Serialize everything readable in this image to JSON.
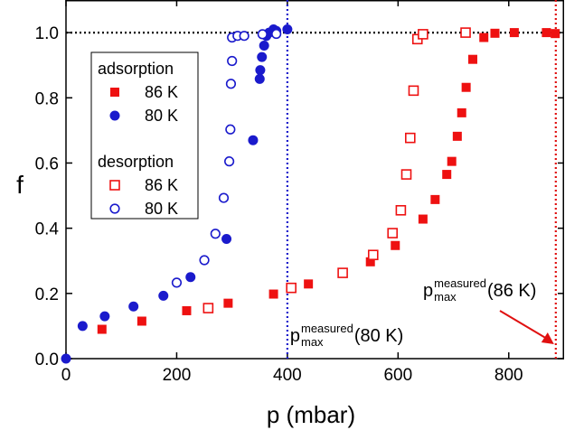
{
  "chart_data": {
    "type": "scatter",
    "x_label": "p (mbar)",
    "y_label": "f",
    "xlim": [
      0,
      900
    ],
    "ylim": [
      0,
      1.1
    ],
    "xticks": [
      0,
      200,
      400,
      600,
      800
    ],
    "yticks": [
      {
        "value": 0,
        "label": "0.0"
      },
      0.2,
      0.4,
      0.6,
      0.8,
      {
        "value": 1,
        "label": "1.0"
      }
    ],
    "hlines": [
      {
        "y": 1,
        "color": "#000000"
      }
    ],
    "vlines": [
      {
        "x": 400,
        "color": "#1a1acc"
      },
      {
        "x": 885,
        "color": "#e01010"
      }
    ],
    "series_groups": [
      {
        "name": "adsorption",
        "series": [
          {
            "name": "86 K",
            "color": "#ee1111",
            "marker": "square",
            "filled": true,
            "x": [
              65,
              137,
              218,
              293,
              375,
              438,
              550,
              595,
              645,
              667,
              688,
              697,
              707,
              715,
              723,
              735,
              755,
              775,
              810,
              868,
              884
            ],
            "values": [
              0.09,
              0.115,
              0.147,
              0.17,
              0.198,
              0.229,
              0.297,
              0.347,
              0.428,
              0.488,
              0.565,
              0.605,
              0.682,
              0.754,
              0.832,
              0.918,
              0.985,
              0.998,
              1.0,
              1.0,
              0.997
            ]
          },
          {
            "name": "80 K",
            "color": "#1a1acc",
            "marker": "circle",
            "filled": true,
            "x": [
              0,
              30,
              70,
              122,
              176,
              225,
              290,
              338,
              350,
              351,
              354,
              358,
              362,
              367,
              375,
              380,
              400
            ],
            "values": [
              0,
              0.1,
              0.13,
              0.16,
              0.193,
              0.25,
              0.367,
              0.67,
              0.858,
              0.885,
              0.925,
              0.96,
              0.99,
              1.0,
              1.01,
              1.005,
              1.01
            ]
          }
        ]
      },
      {
        "name": "desorption",
        "series": [
          {
            "name": "86 K",
            "color": "#ee1111",
            "marker": "square",
            "filled": false,
            "x": [
              257,
              407,
              500,
              555,
              590,
              605,
              615,
              622,
              628,
              635,
              645,
              722
            ],
            "values": [
              0.155,
              0.217,
              0.263,
              0.318,
              0.385,
              0.455,
              0.565,
              0.677,
              0.822,
              0.98,
              0.995,
              1.0
            ]
          },
          {
            "name": "80 K",
            "color": "#1a1acc",
            "marker": "circle",
            "filled": false,
            "x": [
              200,
              250,
              270,
              285,
              295,
              297,
              298,
              300,
              300,
              310,
              322,
              355,
              380
            ],
            "values": [
              0.233,
              0.302,
              0.383,
              0.493,
              0.605,
              0.703,
              0.843,
              0.913,
              0.985,
              0.99,
              0.99,
              0.995,
              0.996
            ]
          }
        ]
      }
    ],
    "annotations": [
      {
        "text": "p",
        "sub": "max",
        "sup": "measured",
        "tail": "(80 K)",
        "color": "#1a1acc"
      },
      {
        "text": "p",
        "sub": "max",
        "sup": "measured",
        "tail": "(86 K)",
        "color": "#e01010"
      }
    ]
  }
}
